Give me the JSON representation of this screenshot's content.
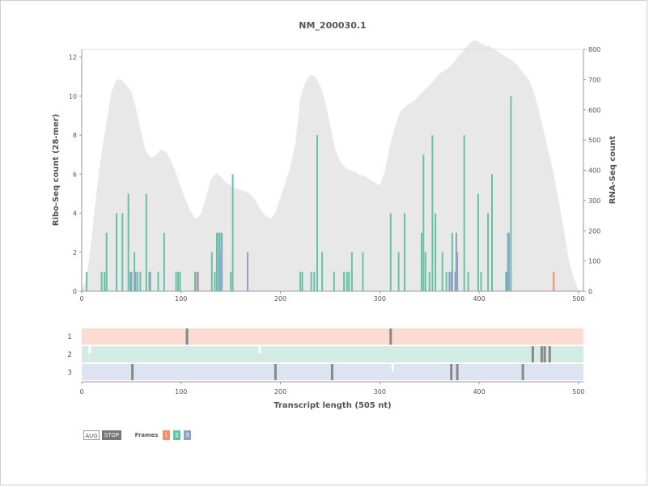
{
  "chart_data": {
    "type": "bar",
    "title": "NM_200030.1",
    "colors": {
      "frame1": "#fc8d62",
      "frame2": "#66c2a5",
      "frame3": "#8da0cb",
      "frame1_bg": "#fcdcd1",
      "frame2_bg": "#d2ece3",
      "frame3_bg": "#dde3f0",
      "rna": "#e8e8e8",
      "axis": "#999999",
      "text": "#555555",
      "orf_mark": "#888888"
    },
    "top_plot": {
      "xlabel": "",
      "ylabel_left": "Ribo-Seq count (28-mer)",
      "ylabel_right": "RNA-Seq count",
      "xlim": [
        0,
        505
      ],
      "ylim_left": [
        0,
        12.4
      ],
      "ylim_right": [
        0,
        800
      ],
      "x_ticks": [
        0,
        100,
        200,
        300,
        400,
        500
      ],
      "y_ticks_left": [
        0,
        2,
        4,
        6,
        8,
        10,
        12
      ],
      "y_ticks_right": [
        0,
        100,
        200,
        300,
        400,
        500,
        600,
        700,
        800
      ],
      "rna_seq": {
        "x": [
          0,
          5,
          10,
          15,
          20,
          25,
          30,
          35,
          40,
          45,
          50,
          55,
          60,
          65,
          70,
          75,
          80,
          85,
          90,
          95,
          100,
          105,
          110,
          115,
          120,
          125,
          130,
          135,
          140,
          145,
          150,
          155,
          160,
          165,
          170,
          175,
          180,
          185,
          190,
          195,
          200,
          205,
          210,
          215,
          220,
          225,
          230,
          235,
          240,
          245,
          250,
          255,
          260,
          265,
          270,
          275,
          280,
          285,
          290,
          295,
          300,
          305,
          310,
          315,
          320,
          325,
          330,
          335,
          340,
          345,
          350,
          355,
          360,
          365,
          370,
          375,
          380,
          385,
          390,
          395,
          400,
          405,
          410,
          415,
          420,
          425,
          430,
          435,
          440,
          445,
          450,
          455,
          460,
          465,
          470,
          475,
          480,
          485,
          490,
          495,
          500,
          505
        ],
        "values": [
          5,
          40,
          180,
          330,
          460,
          560,
          660,
          700,
          700,
          680,
          660,
          600,
          520,
          460,
          440,
          450,
          470,
          460,
          430,
          390,
          340,
          300,
          260,
          240,
          255,
          310,
          370,
          390,
          380,
          360,
          350,
          340,
          335,
          330,
          320,
          300,
          270,
          250,
          240,
          260,
          310,
          360,
          410,
          490,
          640,
          690,
          715,
          710,
          680,
          630,
          550,
          470,
          430,
          410,
          400,
          395,
          385,
          380,
          370,
          360,
          350,
          395,
          480,
          540,
          590,
          610,
          620,
          630,
          650,
          665,
          680,
          700,
          720,
          730,
          740,
          760,
          780,
          800,
          820,
          830,
          825,
          815,
          810,
          800,
          790,
          780,
          770,
          760,
          740,
          720,
          700,
          660,
          600,
          530,
          460,
          390,
          300,
          210,
          110,
          45,
          5,
          0
        ],
        "ylim": [
          0,
          800
        ]
      },
      "series": [
        {
          "name": "1",
          "x": [
            116,
            475
          ],
          "values": [
            1,
            1
          ]
        },
        {
          "name": "2",
          "x": [
            5,
            20,
            23,
            25,
            35,
            41,
            47,
            49,
            53,
            56,
            59,
            65,
            68,
            77,
            83,
            95,
            97,
            99,
            114,
            117,
            131,
            134,
            136,
            138,
            139,
            141,
            150,
            152,
            220,
            222,
            231,
            234,
            237,
            242,
            254,
            264,
            267,
            269,
            272,
            283,
            311,
            319,
            325,
            342,
            344,
            346,
            350,
            353,
            356,
            363,
            367,
            373,
            378,
            385,
            389,
            399,
            402,
            409,
            413,
            427,
            429,
            432
          ],
          "values": [
            1,
            1,
            1,
            3,
            4,
            4,
            5,
            1,
            2,
            1,
            1,
            5,
            1,
            1,
            3,
            1,
            1,
            1,
            1,
            1,
            2,
            1,
            3,
            3,
            3,
            1,
            1,
            6,
            1,
            1,
            1,
            1,
            8,
            2,
            1,
            1,
            1,
            1,
            2,
            2,
            4,
            2,
            4,
            3,
            7,
            2,
            1,
            8,
            4,
            2,
            1,
            3,
            2,
            8,
            1,
            5,
            1,
            4,
            6,
            1,
            3,
            10
          ]
        },
        {
          "name": "3",
          "x": [
            50,
            54,
            69,
            117,
            139,
            141,
            167,
            370,
            372,
            376,
            377,
            428,
            430
          ],
          "values": [
            1,
            1,
            1,
            1,
            2,
            3,
            2,
            1,
            1,
            1,
            3,
            1,
            3
          ]
        }
      ]
    },
    "orf_plot": {
      "xlabel": "Transcript length (505 nt)",
      "xlim": [
        0,
        505
      ],
      "x_ticks": [
        0,
        100,
        200,
        300,
        400,
        500
      ],
      "rows": [
        {
          "frame": "1",
          "aug": [],
          "stop": [
            106,
            311
          ]
        },
        {
          "frame": "2",
          "aug": [
            8,
            179
          ],
          "stop": [
            454,
            463,
            466,
            471
          ]
        },
        {
          "frame": "3",
          "aug": [
            313
          ],
          "stop": [
            51,
            195,
            252,
            372,
            378,
            444
          ]
        }
      ]
    }
  },
  "legend": {
    "aug_label": "AUG",
    "stop_label": "STOP",
    "frames_label": "Frames",
    "frame_labels": [
      "1",
      "2",
      "3"
    ]
  }
}
